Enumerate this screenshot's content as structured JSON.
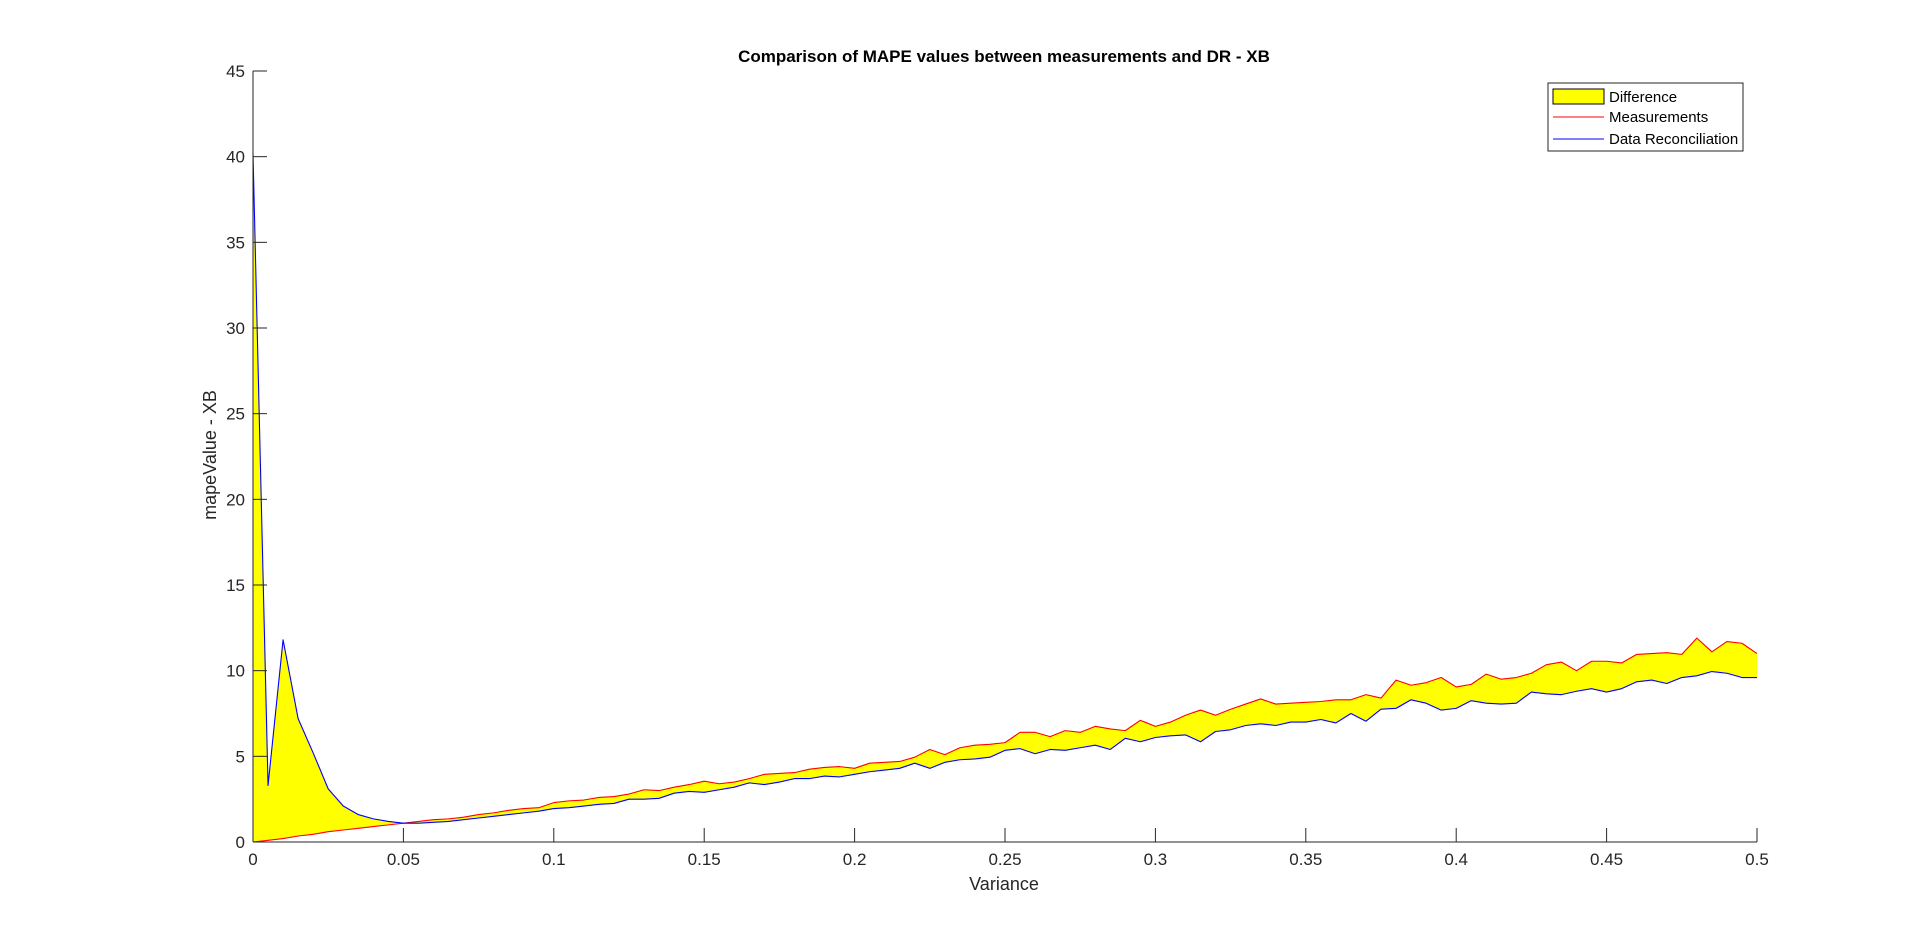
{
  "chart_data": {
    "type": "area",
    "title": "Comparison of MAPE values between measurements and DR - XB",
    "xlabel": "Variance",
    "ylabel": "mapeValue - XB",
    "xlim": [
      0,
      0.5
    ],
    "ylim": [
      0,
      45
    ],
    "xticks": [
      0,
      0.05,
      0.1,
      0.15,
      0.2,
      0.25,
      0.3,
      0.35,
      0.4,
      0.45,
      0.5
    ],
    "xtick_labels": [
      "0",
      "0.05",
      "0.1",
      "0.15",
      "0.2",
      "0.25",
      "0.3",
      "0.35",
      "0.4",
      "0.45",
      "0.5"
    ],
    "yticks": [
      0,
      5,
      10,
      15,
      20,
      25,
      30,
      35,
      40,
      45
    ],
    "ytick_labels": [
      "0",
      "5",
      "10",
      "15",
      "20",
      "25",
      "30",
      "35",
      "40",
      "45"
    ],
    "grid": false,
    "legend": {
      "placement": "top-right",
      "entries": [
        "Difference",
        "Measurements",
        "Data Reconciliation"
      ]
    },
    "colors": {
      "difference_fill": "#ffff00",
      "measurements": "#ff0000",
      "data_reconciliation": "#0000ff"
    },
    "series": [
      {
        "name": "Measurements",
        "x": [
          0,
          0.005,
          0.01,
          0.015,
          0.02,
          0.025,
          0.03,
          0.035,
          0.04,
          0.045,
          0.05,
          0.055,
          0.06,
          0.065,
          0.07,
          0.075,
          0.08,
          0.085,
          0.09,
          0.095,
          0.1,
          0.105,
          0.11,
          0.115,
          0.12,
          0.125,
          0.13,
          0.135,
          0.14,
          0.145,
          0.15,
          0.155,
          0.16,
          0.165,
          0.17,
          0.175,
          0.18,
          0.185,
          0.19,
          0.195,
          0.2,
          0.205,
          0.21,
          0.215,
          0.22,
          0.225,
          0.23,
          0.235,
          0.24,
          0.245,
          0.25,
          0.255,
          0.26,
          0.265,
          0.27,
          0.275,
          0.28,
          0.285,
          0.29,
          0.295,
          0.3,
          0.305,
          0.31,
          0.315,
          0.32,
          0.325,
          0.33,
          0.335,
          0.34,
          0.345,
          0.35,
          0.355,
          0.36,
          0.365,
          0.37,
          0.375,
          0.38,
          0.385,
          0.39,
          0.395,
          0.4,
          0.405,
          0.41,
          0.415,
          0.42,
          0.425,
          0.43,
          0.435,
          0.44,
          0.445,
          0.45,
          0.455,
          0.46,
          0.465,
          0.47,
          0.475,
          0.48,
          0.485,
          0.49,
          0.495,
          0.5
        ],
        "values": [
          0,
          0.1,
          0.2,
          0.35,
          0.45,
          0.6,
          0.7,
          0.8,
          0.9,
          1.0,
          1.1,
          1.2,
          1.3,
          1.35,
          1.45,
          1.6,
          1.7,
          1.85,
          1.95,
          2.0,
          2.3,
          2.4,
          2.45,
          2.6,
          2.65,
          2.8,
          3.05,
          3.0,
          3.2,
          3.35,
          3.55,
          3.4,
          3.5,
          3.7,
          3.95,
          4.0,
          4.05,
          4.25,
          4.35,
          4.4,
          4.3,
          4.6,
          4.65,
          4.7,
          4.95,
          5.4,
          5.1,
          5.5,
          5.65,
          5.7,
          5.8,
          6.4,
          6.4,
          6.15,
          6.5,
          6.4,
          6.75,
          6.6,
          6.5,
          7.1,
          6.75,
          7.0,
          7.4,
          7.7,
          7.4,
          7.75,
          8.05,
          8.35,
          8.05,
          8.1,
          8.15,
          8.2,
          8.3,
          8.3,
          8.6,
          8.4,
          9.45,
          9.15,
          9.3,
          9.6,
          9.05,
          9.2,
          9.8,
          9.5,
          9.6,
          9.85,
          10.35,
          10.5,
          10.0,
          10.55,
          10.55,
          10.45,
          10.95,
          11.0,
          11.05,
          10.95,
          11.9,
          11.1,
          11.7,
          11.6,
          11.0
        ]
      },
      {
        "name": "Data Reconciliation",
        "x": [
          0,
          0.005,
          0.01,
          0.015,
          0.02,
          0.025,
          0.03,
          0.035,
          0.04,
          0.045,
          0.05,
          0.055,
          0.06,
          0.065,
          0.07,
          0.075,
          0.08,
          0.085,
          0.09,
          0.095,
          0.1,
          0.105,
          0.11,
          0.115,
          0.12,
          0.125,
          0.13,
          0.135,
          0.14,
          0.145,
          0.15,
          0.155,
          0.16,
          0.165,
          0.17,
          0.175,
          0.18,
          0.185,
          0.19,
          0.195,
          0.2,
          0.205,
          0.21,
          0.215,
          0.22,
          0.225,
          0.23,
          0.235,
          0.24,
          0.245,
          0.25,
          0.255,
          0.26,
          0.265,
          0.27,
          0.275,
          0.28,
          0.285,
          0.29,
          0.295,
          0.3,
          0.305,
          0.31,
          0.315,
          0.32,
          0.325,
          0.33,
          0.335,
          0.34,
          0.345,
          0.35,
          0.355,
          0.36,
          0.365,
          0.37,
          0.375,
          0.38,
          0.385,
          0.39,
          0.395,
          0.4,
          0.405,
          0.41,
          0.415,
          0.42,
          0.425,
          0.43,
          0.435,
          0.44,
          0.445,
          0.45,
          0.455,
          0.46,
          0.465,
          0.47,
          0.475,
          0.48,
          0.485,
          0.49,
          0.495,
          0.5
        ],
        "values": [
          40.2,
          3.3,
          11.8,
          7.2,
          5.2,
          3.1,
          2.1,
          1.6,
          1.35,
          1.2,
          1.1,
          1.1,
          1.15,
          1.2,
          1.3,
          1.4,
          1.5,
          1.6,
          1.7,
          1.8,
          1.95,
          2.0,
          2.1,
          2.2,
          2.25,
          2.5,
          2.5,
          2.55,
          2.85,
          2.95,
          2.9,
          3.05,
          3.2,
          3.45,
          3.35,
          3.5,
          3.7,
          3.7,
          3.85,
          3.8,
          3.95,
          4.1,
          4.2,
          4.3,
          4.6,
          4.3,
          4.65,
          4.8,
          4.85,
          4.95,
          5.35,
          5.45,
          5.15,
          5.4,
          5.35,
          5.5,
          5.65,
          5.4,
          6.05,
          5.85,
          6.1,
          6.2,
          6.25,
          5.85,
          6.45,
          6.55,
          6.8,
          6.9,
          6.8,
          7.0,
          7.0,
          7.15,
          6.95,
          7.5,
          7.05,
          7.75,
          7.8,
          8.3,
          8.1,
          7.7,
          7.8,
          8.25,
          8.1,
          8.05,
          8.1,
          8.75,
          8.65,
          8.6,
          8.8,
          8.95,
          8.75,
          8.95,
          9.35,
          9.45,
          9.25,
          9.6,
          9.7,
          9.95,
          9.85,
          9.6,
          9.6
        ]
      }
    ]
  }
}
